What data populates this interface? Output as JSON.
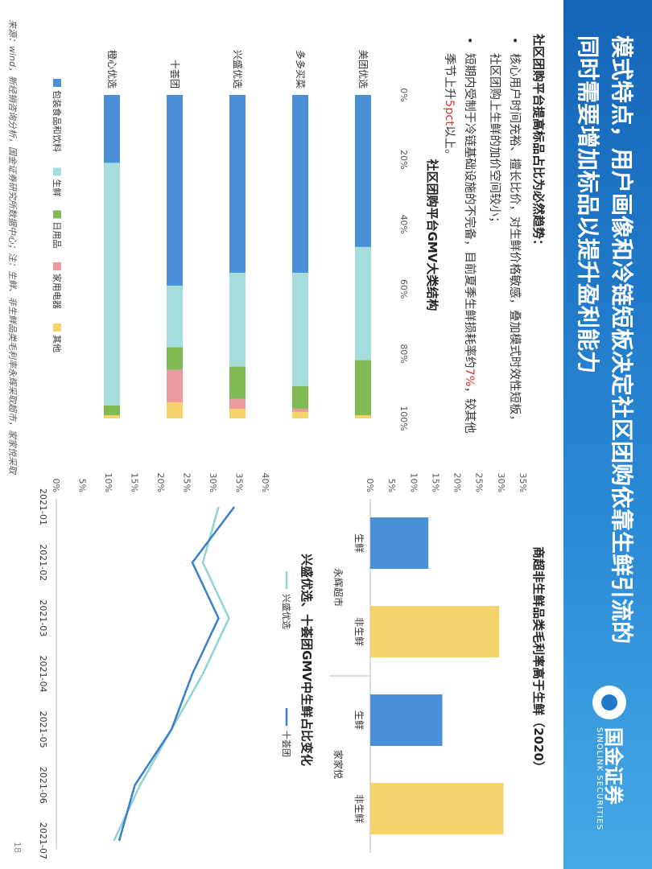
{
  "header": {
    "title_line1": "模式特点，用户画像和冷链短板决定社区团购依靠生鲜引流的",
    "title_line2": "同时需要增加标品以提升盈利能力",
    "logo_cn": "国金证券",
    "logo_en": "SINOLINK SECURITIES",
    "brand_color": "#1f78c8"
  },
  "text": {
    "heading": "社区团购平台提高标品占比为必然趋势：",
    "bullet1": "核心用户时间充裕、擅长比价，对生鲜价格敏感，叠加模式时效性短板，社区团购上生鲜的加价空间较小；",
    "bullet2_pre": "短期内受制于冷链基础设施的不完备，目前夏季生鲜损耗率约",
    "bullet2_hl1": "7%",
    "bullet2_mid": "，较其他季节上升",
    "bullet2_hl2": "5pct",
    "bullet2_post": "以上。"
  },
  "chart_data": [
    {
      "type": "bar",
      "stacked": true,
      "percent": true,
      "orientation": "horizontal",
      "title": "社区团购平台GMV大类结构",
      "categories": [
        "美团优选",
        "多多买菜",
        "兴盛优选",
        "十荟团",
        "橙心优选"
      ],
      "xlim": [
        0,
        100
      ],
      "xticks": [
        "0%",
        "20%",
        "40%",
        "60%",
        "80%",
        "100%"
      ],
      "legend_position": "bottom",
      "series": [
        {
          "name": "包装食品和饮料",
          "color": "#4a90d9",
          "values": [
            47,
            55,
            55,
            59,
            21
          ]
        },
        {
          "name": "生鲜",
          "color": "#a5dcdc",
          "values": [
            35,
            35,
            29,
            19,
            75
          ]
        },
        {
          "name": "日用品",
          "color": "#7fba52",
          "values": [
            17,
            7,
            10,
            7,
            3
          ]
        },
        {
          "name": "家用电器",
          "color": "#ec9aa0",
          "values": [
            0,
            1,
            3,
            10,
            0
          ]
        },
        {
          "name": "其他",
          "color": "#f5d36b",
          "values": [
            1,
            2,
            3,
            5,
            1
          ]
        }
      ]
    },
    {
      "type": "bar",
      "title": "商超非生鲜品类毛利率高于生鲜（2020）",
      "groups": [
        "永辉超市",
        "家家悦"
      ],
      "categories": [
        "生鲜",
        "非生鲜",
        "生鲜",
        "非生鲜"
      ],
      "values": [
        13.3,
        29.5,
        16.5,
        30.5
      ],
      "colors": [
        "#4a90d9",
        "#f5d36b",
        "#4a90d9",
        "#f5d36b"
      ],
      "ylim": [
        0,
        35
      ],
      "yticks": [
        "0%",
        "5%",
        "10%",
        "15%",
        "20%",
        "25%",
        "30%",
        "35%"
      ]
    },
    {
      "type": "line",
      "title": "兴盛优选、十荟团GMV中生鲜占比变化",
      "x": [
        "2021-01",
        "2021-02",
        "2021-03",
        "2021-04",
        "2021-05",
        "2021-06",
        "2021-07"
      ],
      "ylim": [
        0,
        40
      ],
      "yticks": [
        "0%",
        "5%",
        "10%",
        "15%",
        "20%",
        "25%",
        "30%",
        "35%",
        "40%"
      ],
      "legend_position": "top",
      "series": [
        {
          "name": "兴盛优选",
          "color": "#8fd3d3",
          "values": [
            31,
            28,
            33,
            28,
            22,
            16,
            11
          ]
        },
        {
          "name": "十荟团",
          "color": "#3a7fcc",
          "values": [
            34,
            26,
            31,
            26,
            22,
            15,
            12
          ]
        }
      ]
    }
  ],
  "footer": {
    "source": "来源：wind，新经销咨询分析，国金证券研究所数据中心；注：生鲜、非生鲜品类毛利率永辉采取超市，家家悦采取",
    "page_number": "18"
  }
}
